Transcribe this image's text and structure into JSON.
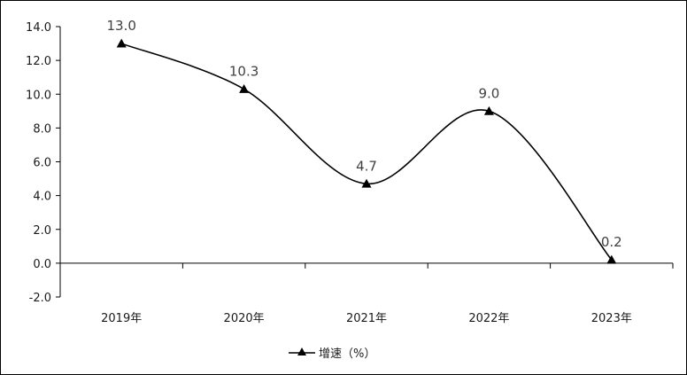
{
  "chart_data": {
    "type": "line",
    "categories": [
      "2019年",
      "2020年",
      "2021年",
      "2022年",
      "2023年"
    ],
    "series": [
      {
        "name": "增速（%）",
        "values": [
          13.0,
          10.3,
          4.7,
          9.0,
          0.2
        ]
      }
    ],
    "data_labels": [
      "13.0",
      "10.3",
      "4.7",
      "9.0",
      "0.2"
    ],
    "y_ticks": [
      "-2.0",
      "0.0",
      "2.0",
      "4.0",
      "6.0",
      "8.0",
      "10.0",
      "12.0",
      "14.0"
    ],
    "ylim": [
      -2.0,
      14.0
    ],
    "grid": false,
    "smooth": true,
    "marker": "triangle",
    "line_color": "#000000",
    "legend_position": "bottom",
    "title": "",
    "xlabel": "",
    "ylabel": ""
  }
}
